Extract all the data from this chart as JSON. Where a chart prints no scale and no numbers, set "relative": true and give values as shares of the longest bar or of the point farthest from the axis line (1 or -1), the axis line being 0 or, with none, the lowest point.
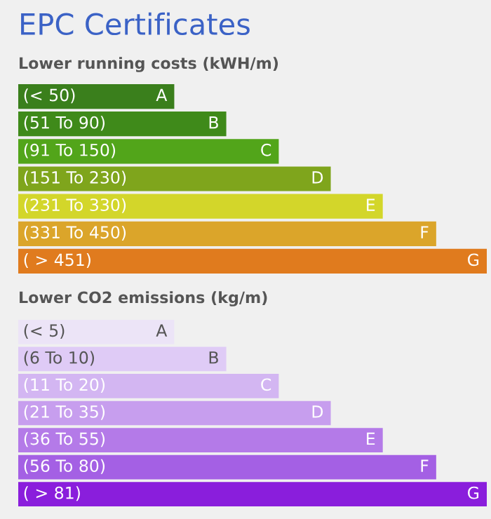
{
  "chart_data": [
    {
      "type": "bar",
      "orientation": "horizontal",
      "relative": true,
      "title": "EPC Certificates",
      "subtitle": "Lower running costs (kWH/m)",
      "categories": [
        "(< 50)",
        "(51 To 90)",
        "(91 To 150)",
        "(151 To 230)",
        "(231 To 330)",
        "(331 To 450)",
        "( > 451)"
      ],
      "values": [
        0.333,
        0.444,
        0.556,
        0.667,
        0.778,
        0.892,
        1
      ],
      "colors": [
        "#3a7f1c",
        "#3f8a1a",
        "#52a51a",
        "#7fa51c",
        "#d3d62a",
        "#dba52a",
        "#e07b1e"
      ],
      "annotations": [
        {
          "text": "A",
          "x": 0.333,
          "y": "(< 50)"
        },
        {
          "text": "B",
          "x": 0.444,
          "y": "(51 To 90)"
        },
        {
          "text": "C",
          "x": 0.556,
          "y": "(91 To 150)"
        },
        {
          "text": "D",
          "x": 0.667,
          "y": "(151 To 230)"
        },
        {
          "text": "E",
          "x": 0.778,
          "y": "(231 To 330)"
        },
        {
          "text": "F",
          "x": 0.892,
          "y": "(331 To 450)"
        },
        {
          "text": "G",
          "x": 1,
          "y": "( > 451)"
        }
      ]
    },
    {
      "type": "bar",
      "orientation": "horizontal",
      "relative": true,
      "title": "Lower CO2 emissions (kg/m)",
      "categories": [
        "(< 5)",
        "(6 To 10)",
        "(11 To 20)",
        "(21 To 35)",
        "(36 To 55)",
        "(56 To 80)",
        "( > 81)"
      ],
      "values": [
        0.333,
        0.444,
        0.556,
        0.667,
        0.778,
        0.892,
        1
      ],
      "colors": [
        "#ece4f7",
        "#dfcbf6",
        "#d3b6f2",
        "#c79eee",
        "#b47ae8",
        "#a460e4",
        "#8a1edc"
      ],
      "annotations": [
        {
          "text": "A",
          "x": 0.333,
          "y": "(< 5)"
        },
        {
          "text": "B",
          "x": 0.444,
          "y": "(6 To 10)"
        },
        {
          "text": "C",
          "x": 0.556,
          "y": "(11 To 20)"
        },
        {
          "text": "D",
          "x": 0.667,
          "y": "(21 To 35)"
        },
        {
          "text": "E",
          "x": 0.778,
          "y": "(36 To 55)"
        },
        {
          "text": "F",
          "x": 0.892,
          "y": "(56 To 80)"
        },
        {
          "text": "G",
          "x": 1,
          "y": "( > 81)"
        }
      ]
    }
  ]
}
